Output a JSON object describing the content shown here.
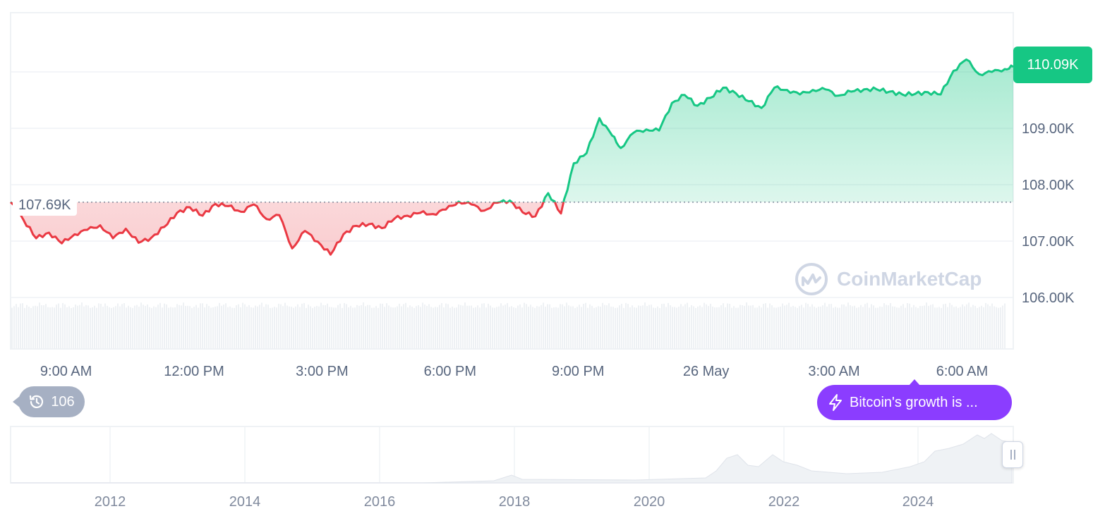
{
  "chart_data": {
    "type": "area",
    "y_ticks": [
      "110.09K",
      "109.00K",
      "108.00K",
      "107.00K",
      "106.00K"
    ],
    "y_tick_values": [
      109000,
      108000,
      107000,
      106000
    ],
    "ylim": [
      105400,
      110900
    ],
    "x_tick_labels": [
      "9:00 AM",
      "12:00 PM",
      "3:00 PM",
      "6:00 PM",
      "9:00 PM",
      "26 May",
      "3:00 AM",
      "6:00 AM"
    ],
    "reference_value": 107690,
    "reference_label": "107.69K",
    "current_value": 110090,
    "current_label": "110.09K",
    "x_range_hours": [
      7.7,
      31.2
    ],
    "series": [
      {
        "x": [
          7.7,
          8.0,
          8.3,
          8.6,
          8.9,
          9.2,
          9.5,
          9.8,
          10.1,
          10.4,
          10.7,
          11.0,
          11.3,
          11.6,
          11.9,
          12.2,
          12.5,
          12.8,
          13.1,
          13.4,
          13.7,
          14.0,
          14.3,
          14.6,
          14.9,
          15.2,
          15.5,
          15.8,
          16.1,
          16.4,
          16.7,
          17.0,
          17.3,
          17.6,
          17.9,
          18.2,
          18.5,
          18.8,
          19.1,
          19.4,
          19.7,
          20.0,
          20.3,
          20.6,
          20.9,
          21.2,
          21.5,
          21.8,
          22.0,
          22.3,
          22.6,
          22.9,
          23.2,
          23.5,
          23.8,
          24.1,
          24.4,
          24.7,
          25.0,
          25.3,
          25.6,
          25.9,
          26.2,
          26.5,
          26.8,
          27.1,
          27.4,
          27.7,
          28.0,
          28.3,
          28.6,
          28.9,
          29.2,
          29.5,
          29.8,
          30.1,
          30.4,
          30.7,
          31.0,
          31.2
        ],
        "values": [
          107690,
          107380,
          107050,
          107150,
          106960,
          107120,
          107200,
          107280,
          107050,
          107220,
          106970,
          107060,
          107250,
          107500,
          107600,
          107450,
          107660,
          107620,
          107520,
          107650,
          107390,
          107460,
          106870,
          107180,
          106990,
          106760,
          107120,
          107270,
          107300,
          107230,
          107400,
          107450,
          107500,
          107480,
          107560,
          107700,
          107650,
          107540,
          107680,
          107720,
          107510,
          107440,
          107850,
          107490,
          108380,
          108560,
          109180,
          108870,
          108650,
          108920,
          108980,
          108960,
          109450,
          109590,
          109400,
          109540,
          109720,
          109620,
          109480,
          109360,
          109720,
          109680,
          109600,
          109680,
          109690,
          109580,
          109650,
          109690,
          109690,
          109650,
          109600,
          109610,
          109640,
          109600,
          110020,
          110220,
          109960,
          110000,
          110050,
          110090
        ]
      }
    ],
    "volume_note": "",
    "navigator_x_ticks": [
      "2012",
      "2014",
      "2016",
      "2018",
      "2020",
      "2022",
      "2024"
    ]
  },
  "labels": {
    "open_value": "107.69K",
    "current_price": "110.09K",
    "history_count": "106",
    "news_text": "Bitcoin's growth is ...",
    "watermark": "CoinMarketCap"
  },
  "colors": {
    "up": "#16c784",
    "down": "#ea3943",
    "news": "#8b3dff",
    "history": "#a6b0c3"
  },
  "icons": {
    "history": "history-clock-icon",
    "news": "lightning-bolt-icon",
    "logo": "coinmarketcap-logo-icon"
  }
}
